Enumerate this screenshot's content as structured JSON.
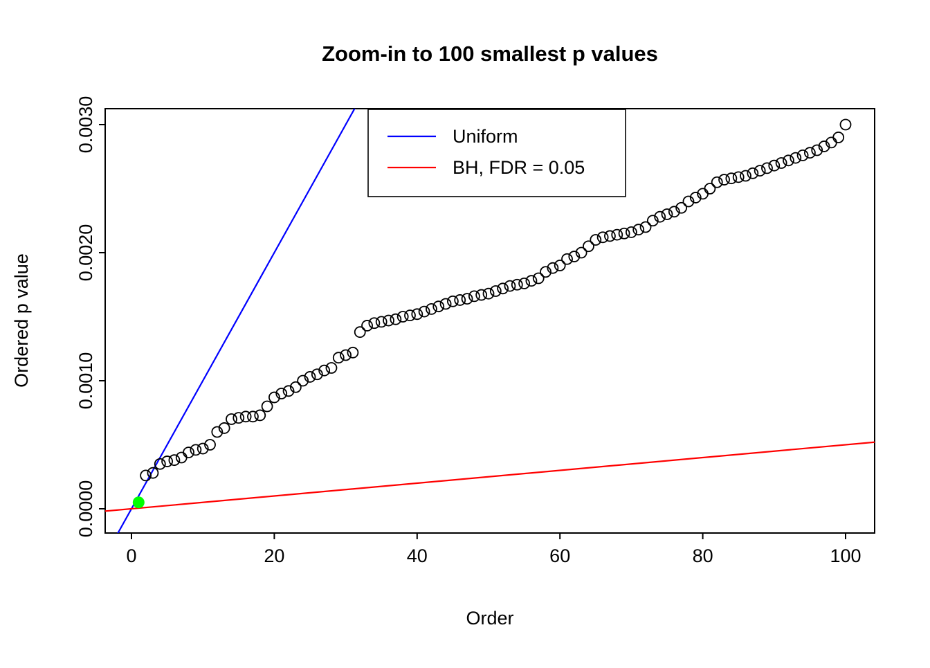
{
  "chart_data": {
    "type": "scatter",
    "title": "Zoom-in to 100 smallest p values",
    "xlabel": "Order",
    "ylabel": "Ordered p value",
    "xlim": [
      -3.7,
      104
    ],
    "ylim": [
      -0.00019,
      0.003124
    ],
    "grid": false,
    "xticks": [
      0,
      20,
      40,
      60,
      80,
      100
    ],
    "ytick_values": [
      0.0,
      0.001,
      0.002,
      0.003
    ],
    "ytick_labels": [
      "0.0000",
      "0.0010",
      "0.0020",
      "0.0030"
    ],
    "points": {
      "marker": "open-circle",
      "color": "#000000",
      "x_start": 1,
      "y": [
        5e-05,
        0.00026,
        0.00028,
        0.00035,
        0.00037,
        0.00038,
        0.0004,
        0.00044,
        0.00046,
        0.00047,
        0.0005,
        0.0006,
        0.00063,
        0.0007,
        0.00071,
        0.00072,
        0.00072,
        0.00073,
        0.0008,
        0.00087,
        0.0009,
        0.00092,
        0.00095,
        0.001,
        0.00103,
        0.00105,
        0.00108,
        0.0011,
        0.00118,
        0.0012,
        0.00122,
        0.00138,
        0.00143,
        0.00145,
        0.00146,
        0.00147,
        0.00148,
        0.0015,
        0.00151,
        0.00152,
        0.00154,
        0.00156,
        0.00158,
        0.0016,
        0.00162,
        0.00163,
        0.00164,
        0.00166,
        0.00167,
        0.00168,
        0.0017,
        0.00172,
        0.00174,
        0.00175,
        0.00176,
        0.00178,
        0.0018,
        0.00185,
        0.00188,
        0.0019,
        0.00195,
        0.00197,
        0.002,
        0.00205,
        0.0021,
        0.00212,
        0.00213,
        0.00214,
        0.00215,
        0.00216,
        0.00218,
        0.0022,
        0.00225,
        0.00228,
        0.0023,
        0.00232,
        0.00235,
        0.0024,
        0.00243,
        0.00246,
        0.0025,
        0.00255,
        0.00257,
        0.00258,
        0.00259,
        0.0026,
        0.00262,
        0.00264,
        0.00266,
        0.00268,
        0.0027,
        0.00272,
        0.00274,
        0.00276,
        0.00278,
        0.0028,
        0.00283,
        0.00286,
        0.0029,
        0.003
      ]
    },
    "highlight_point": {
      "order": 1,
      "value": 5e-05,
      "color": "#00FF00"
    },
    "lines": [
      {
        "name": "Uniform",
        "color": "#0000FF",
        "slope": 0.0001,
        "intercept": 0
      },
      {
        "name": "BH, FDR = 0.05",
        "color": "#FF0000",
        "slope": 5e-06,
        "intercept": 0
      }
    ],
    "legend": {
      "position": "top-inner",
      "entries": [
        {
          "label": "Uniform",
          "color": "#0000FF"
        },
        {
          "label": "BH, FDR = 0.05",
          "color": "#FF0000"
        }
      ]
    }
  }
}
